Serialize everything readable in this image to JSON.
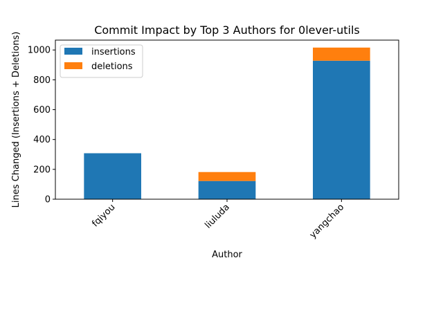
{
  "chart_data": {
    "type": "bar",
    "stacked": true,
    "title": "Commit Impact by Top 3 Authors for 0lever-utils",
    "xlabel": "Author",
    "ylabel": "Lines Changed (Insertions + Deletions)",
    "categories": [
      "fqiyou",
      "liuluda",
      "yangchao"
    ],
    "series": [
      {
        "name": "insertions",
        "values": [
          308,
          122,
          928
        ],
        "color": "#1f77b4"
      },
      {
        "name": "deletions",
        "values": [
          0,
          60,
          88
        ],
        "color": "#ff7f0e"
      }
    ],
    "ylim": [
      0,
      1066
    ],
    "yticks": [
      0,
      200,
      400,
      600,
      800,
      1000
    ],
    "ytick_labels": [
      "0",
      "200",
      "400",
      "600",
      "800",
      "1000"
    ],
    "grid": false,
    "legend_placement": "top-left"
  }
}
